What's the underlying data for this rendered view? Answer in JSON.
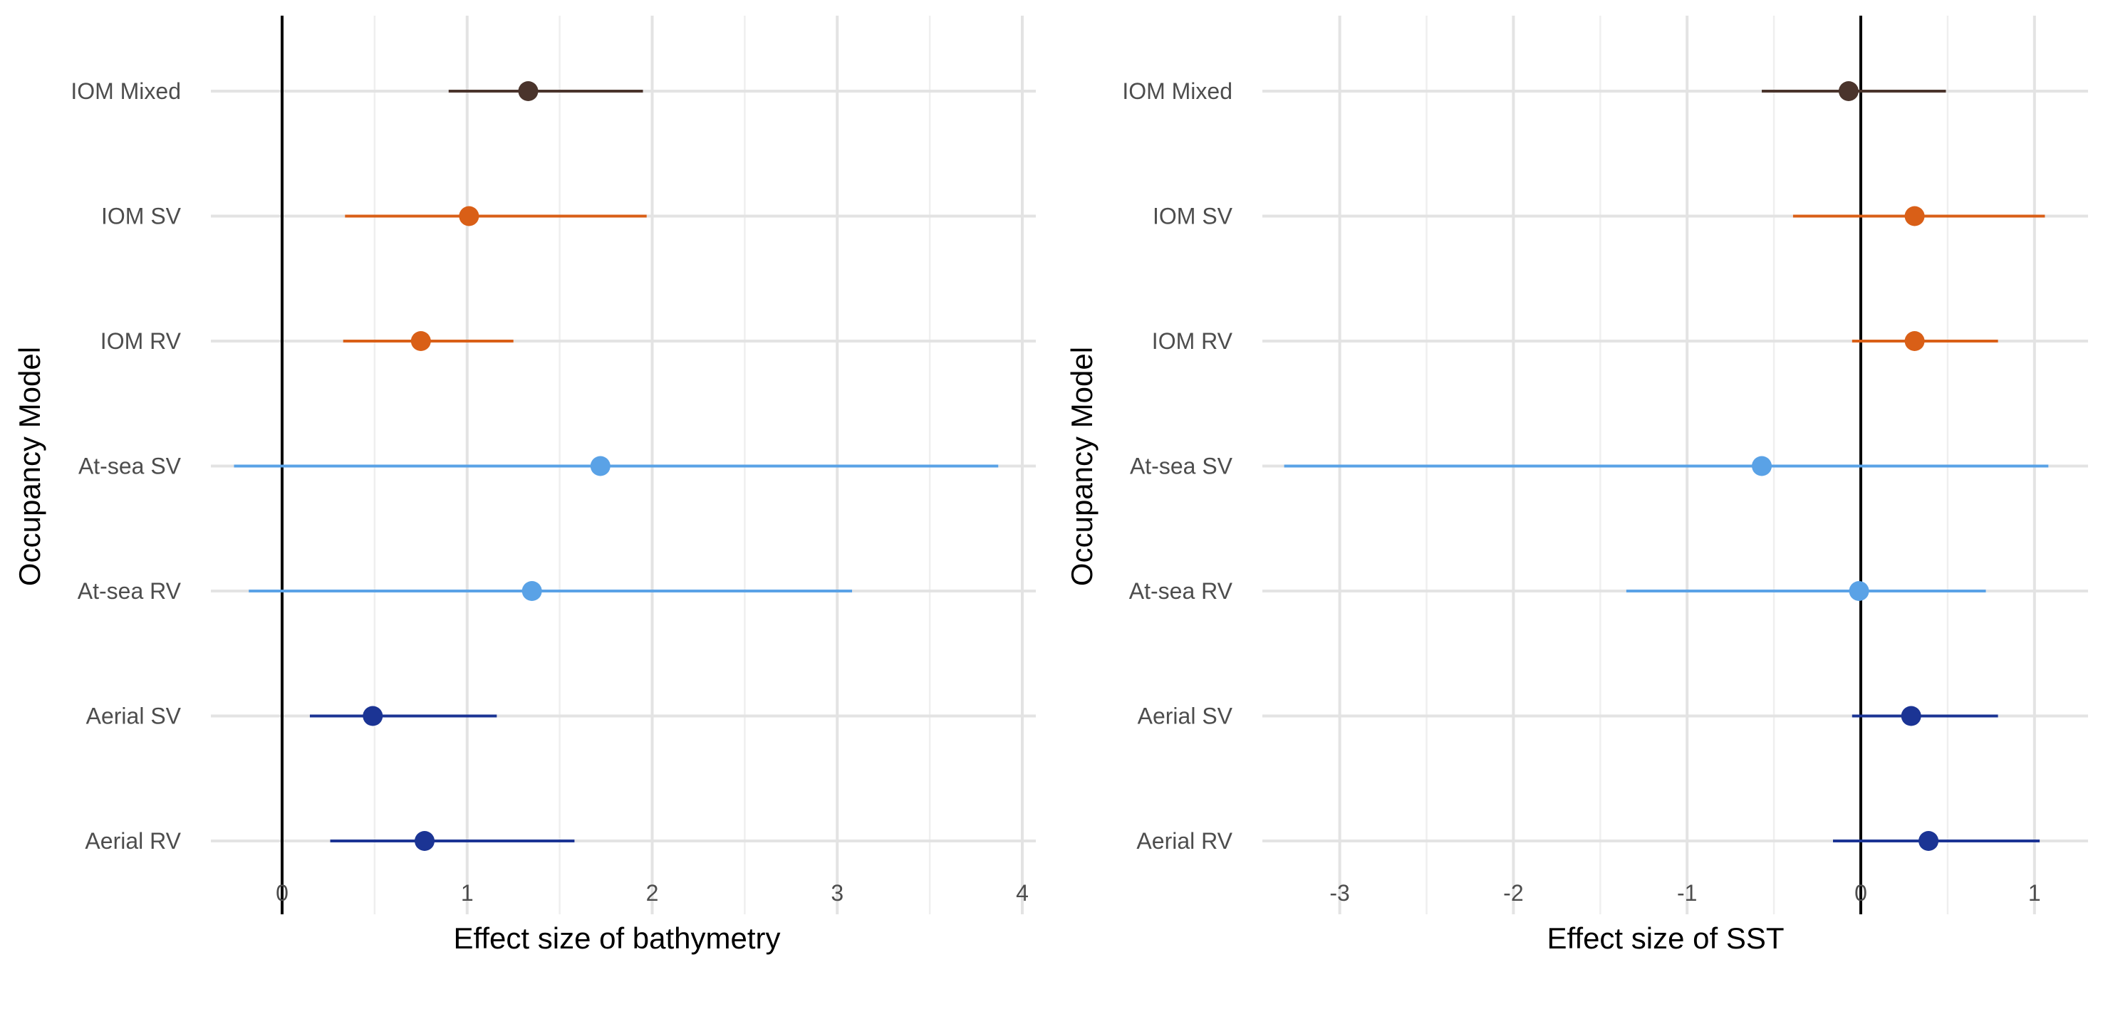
{
  "chart_data": [
    {
      "type": "forest",
      "xlabel": "Effect size of bathymetry",
      "ylabel": "Occupancy Model",
      "xlim": [
        -0.45,
        4.1
      ],
      "xticks": [
        0,
        1,
        2,
        3,
        4
      ],
      "xtick_labels": [
        "0",
        "1",
        "2",
        "3",
        "4"
      ],
      "vline": 0,
      "grid": true,
      "categories": [
        "IOM Mixed",
        "IOM SV",
        "IOM RV",
        "At-sea SV",
        "At-sea RV",
        "Aerial SV",
        "Aerial RV"
      ],
      "series": [
        {
          "category": "IOM Mixed",
          "estimate": 1.33,
          "lower": 0.9,
          "upper": 1.95,
          "color": "#4a342c"
        },
        {
          "category": "IOM SV",
          "estimate": 1.01,
          "lower": 0.34,
          "upper": 1.97,
          "color": "#d95f17"
        },
        {
          "category": "IOM RV",
          "estimate": 0.75,
          "lower": 0.33,
          "upper": 1.25,
          "color": "#d95f17"
        },
        {
          "category": "At-sea SV",
          "estimate": 1.72,
          "lower": -0.26,
          "upper": 3.87,
          "color": "#5aa2e6"
        },
        {
          "category": "At-sea RV",
          "estimate": 1.35,
          "lower": -0.18,
          "upper": 3.08,
          "color": "#5aa2e6"
        },
        {
          "category": "Aerial SV",
          "estimate": 0.49,
          "lower": 0.15,
          "upper": 1.16,
          "color": "#1b3494"
        },
        {
          "category": "Aerial RV",
          "estimate": 0.77,
          "lower": 0.26,
          "upper": 1.58,
          "color": "#1b3494"
        }
      ]
    },
    {
      "type": "forest",
      "xlabel": "Effect size of SST",
      "ylabel": "Occupancy Model",
      "xlim": [
        -3.5,
        1.3
      ],
      "xticks": [
        -3,
        -2,
        -1,
        0,
        1
      ],
      "xtick_labels": [
        "-3",
        "-2",
        "-1",
        "0",
        "1"
      ],
      "vline": 0,
      "grid": true,
      "categories": [
        "IOM Mixed",
        "IOM SV",
        "IOM RV",
        "At-sea SV",
        "At-sea RV",
        "Aerial SV",
        "Aerial RV"
      ],
      "series": [
        {
          "category": "IOM Mixed",
          "estimate": -0.07,
          "lower": -0.57,
          "upper": 0.49,
          "color": "#4a342c"
        },
        {
          "category": "IOM SV",
          "estimate": 0.31,
          "lower": -0.39,
          "upper": 1.06,
          "color": "#d95f17"
        },
        {
          "category": "IOM RV",
          "estimate": 0.31,
          "lower": -0.05,
          "upper": 0.79,
          "color": "#d95f17"
        },
        {
          "category": "At-sea SV",
          "estimate": -0.57,
          "lower": -3.32,
          "upper": 1.08,
          "color": "#5aa2e6"
        },
        {
          "category": "At-sea RV",
          "estimate": -0.01,
          "lower": -1.35,
          "upper": 0.72,
          "color": "#5aa2e6"
        },
        {
          "category": "Aerial SV",
          "estimate": 0.29,
          "lower": -0.05,
          "upper": 0.79,
          "color": "#1b3494"
        },
        {
          "category": "Aerial RV",
          "estimate": 0.39,
          "lower": -0.16,
          "upper": 1.03,
          "color": "#1b3494"
        }
      ]
    }
  ]
}
